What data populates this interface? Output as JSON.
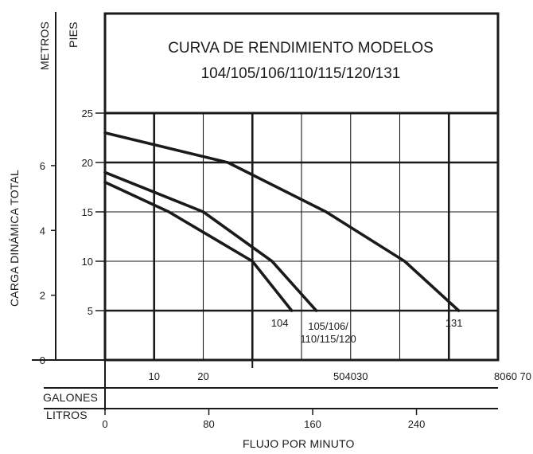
{
  "chart_data": {
    "type": "line",
    "title_lines": [
      "CURVA DE RENDIMIENTO MODELOS",
      "104/105/106/110/115/120/131"
    ],
    "ylabel": "CARGA DINÁMICA TOTAL",
    "left_unit": "METROS",
    "right_unit": "PIES",
    "xlabel": "FLUJO POR MINUTO",
    "gallons_label": "GALONES",
    "liters_label": "LITROS",
    "feet_ticks": [
      "25",
      "20",
      "15",
      "10",
      "5"
    ],
    "meter_ticks": [
      "6",
      "4",
      "2",
      "0"
    ],
    "gallon_ticks": [
      "10",
      "20",
      "504030",
      "8060 70"
    ],
    "liter_ticks": [
      "0",
      "80",
      "160",
      "240"
    ],
    "xlim_gpm": [
      0,
      80
    ],
    "ylim_ft": [
      0,
      25
    ],
    "series": [
      {
        "name": "131",
        "x": [
          0,
          25,
          45,
          61,
          72
        ],
        "y": [
          23,
          20,
          15,
          10,
          5
        ]
      },
      {
        "name": "105/106/\n110/115/120",
        "x": [
          0,
          20,
          34,
          43
        ],
        "y": [
          19,
          15,
          10,
          5
        ]
      },
      {
        "name": "104",
        "x": [
          0,
          13,
          30,
          38
        ],
        "y": [
          18,
          15,
          10,
          5
        ]
      }
    ]
  }
}
